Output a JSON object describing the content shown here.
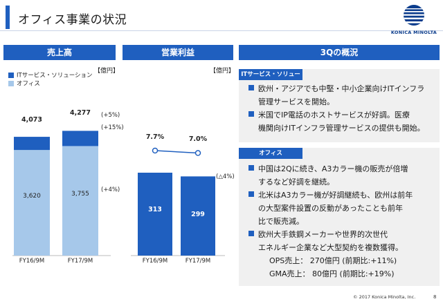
{
  "header": {
    "title": "オフィス事業の状況",
    "logo_text": "KONICA MINOLTA",
    "brand_color": "#1f5fbf"
  },
  "sales_panel": {
    "heading": "売上高",
    "unit": "【億円】",
    "legend": [
      "ITサービス・ソリューション",
      "オフィス"
    ],
    "totals": [
      "4,073",
      "4,277"
    ],
    "it_labels": [
      "452",
      "522"
    ],
    "office_labels": [
      "3,620",
      "3,755"
    ],
    "growth_total": "(+5%)",
    "growth_it": "(+15%)",
    "growth_office": "(+4%)",
    "categories": [
      "FY16/9M",
      "FY17/9M"
    ]
  },
  "profit_panel": {
    "heading": "営業利益",
    "unit": "【億円】",
    "values": [
      "313",
      "299"
    ],
    "margins": [
      "7.7%",
      "7.0%"
    ],
    "growth": "(△4%)",
    "categories": [
      "FY16/9M",
      "FY17/9M"
    ]
  },
  "overview_panel": {
    "heading": "3Qの概況",
    "it_section": {
      "heading": "ITサービス・ソリューション",
      "lines": [
        "欧州・アジアでも中堅・中小企業向けITインフラ",
        "管理サービスを開始。",
        "米国でIP電話のホストサービスが好調。医療",
        "機関向けITインフラ管理サービスの提供も開始。"
      ]
    },
    "office_section": {
      "heading": "オフィス",
      "lines": [
        "中国は2Qに続き、A3カラー機の販売が倍増",
        "するなど好調を継続。",
        "北米はA3カラー機が好調継続も、欧州は前年",
        "の大型案件設置の反動があったことも前年",
        "比で販売減。",
        "欧州大手鉄鋼メーカーや世界的次世代",
        "エネルギー企業など大型契約を複数獲得。",
        "OPS売上：  270億円 (前期比:+11%)",
        "GMA売上：   80億円 (前期比:+19%)"
      ]
    }
  },
  "footer": {
    "copyright": "© 2017 Konica Minolta, Inc.",
    "page": "8"
  },
  "chart_data": [
    {
      "type": "bar",
      "title": "売上高",
      "categories": [
        "FY16/9M",
        "FY17/9M"
      ],
      "series": [
        {
          "name": "オフィス",
          "values": [
            3620,
            3755
          ],
          "color": "#a6c8ea"
        },
        {
          "name": "ITサービス・ソリューション",
          "values": [
            452,
            522
          ],
          "color": "#1f5fbf"
        }
      ],
      "totals": [
        4073,
        4277
      ],
      "stacked": true
    },
    {
      "type": "bar",
      "title": "営業利益",
      "categories": [
        "FY16/9M",
        "FY17/9M"
      ],
      "series": [
        {
          "values": [
            313,
            299
          ],
          "color": "#1f5fbf"
        }
      ],
      "line_series": {
        "values": [
          7.7,
          7.0
        ],
        "color": "#1f5fbf"
      }
    }
  ]
}
